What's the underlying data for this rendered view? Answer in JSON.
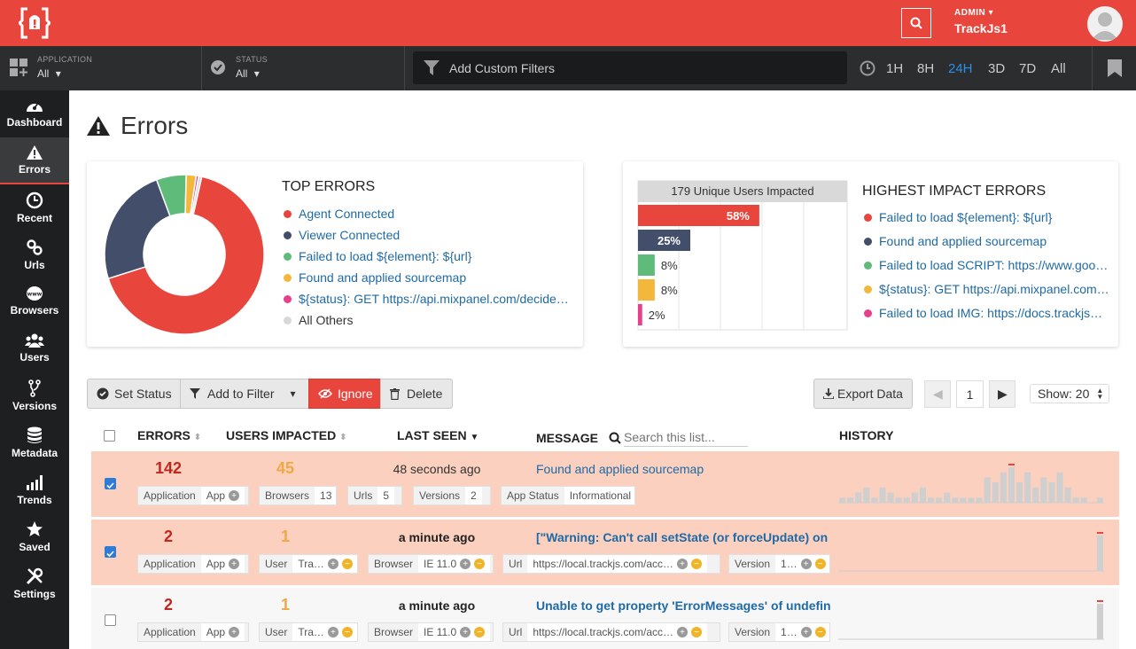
{
  "header": {
    "admin_label": "ADMIN",
    "org_name": "TrackJs1"
  },
  "filters": {
    "application": {
      "caption": "APPLICATION",
      "value": "All"
    },
    "status": {
      "caption": "STATUS",
      "value": "All"
    },
    "custom_placeholder": "Add Custom Filters",
    "time_ranges": [
      "1H",
      "8H",
      "24H",
      "3D",
      "7D",
      "All"
    ],
    "active_range": "24H"
  },
  "sidebar": {
    "items": [
      {
        "label": "Dashboard",
        "icon": "dashboard-icon"
      },
      {
        "label": "Errors",
        "icon": "warning-icon",
        "active": true
      },
      {
        "label": "Recent",
        "icon": "clock-icon"
      },
      {
        "label": "Urls",
        "icon": "link-icon"
      },
      {
        "label": "Browsers",
        "icon": "globe-icon"
      },
      {
        "label": "Users",
        "icon": "users-icon"
      },
      {
        "label": "Versions",
        "icon": "branch-icon"
      },
      {
        "label": "Metadata",
        "icon": "database-icon"
      },
      {
        "label": "Trends",
        "icon": "chart-icon"
      },
      {
        "label": "Saved",
        "icon": "star-icon"
      },
      {
        "label": "Settings",
        "icon": "tools-icon"
      }
    ]
  },
  "page": {
    "title": "Errors"
  },
  "top_errors": {
    "title": "TOP ERRORS",
    "items": [
      {
        "label": "Agent Connected",
        "color": "#e8453c"
      },
      {
        "label": "Viewer Connected",
        "color": "#434e6b"
      },
      {
        "label": "Failed to load ${element}: ${url}",
        "color": "#5fbb7a"
      },
      {
        "label": "Found and applied sourcemap",
        "color": "#f3b73b"
      },
      {
        "label": "${status}: GET https://api.mixpanel.com/decide…",
        "color": "#e83e8c"
      },
      {
        "label": "All Others",
        "color": "#d8d8d8"
      }
    ]
  },
  "chart_data": [
    {
      "type": "pie",
      "title": "TOP ERRORS",
      "labels": [
        "Agent Connected",
        "Viewer Connected",
        "Failed to load ${element}: ${url}",
        "Found and applied sourcemap",
        "${status}: GET https://api.mixpanel.com/decide…",
        "All Others"
      ],
      "values": [
        66,
        24,
        6,
        2,
        0.5,
        0.6
      ]
    },
    {
      "type": "bar",
      "title": "179 Unique Users Impacted",
      "categories": [
        "Failed to load ${element}: ${url}",
        "Found and applied sourcemap",
        "Failed to load SCRIPT: https://www.goo…",
        "${status}: GET https://api.mixpanel.com…",
        "Failed to load IMG: https://docs.trackjs…"
      ],
      "values": [
        58,
        25,
        8,
        8,
        2
      ],
      "labels": [
        "58%",
        "25%",
        "8%",
        "8%",
        "2%"
      ],
      "colors": [
        "#e8453c",
        "#434e6b",
        "#5fbb7a",
        "#f3b73b",
        "#e83e8c"
      ],
      "xlim": [
        0,
        100
      ]
    }
  ],
  "highest_impact": {
    "title": "HIGHEST IMPACT ERRORS",
    "header": "179 Unique Users Impacted",
    "items": [
      {
        "label": "Failed to load ${element}: ${url}",
        "color": "#e8453c"
      },
      {
        "label": "Found and applied sourcemap",
        "color": "#434e6b"
      },
      {
        "label": "Failed to load SCRIPT: https://www.goo…",
        "color": "#5fbb7a"
      },
      {
        "label": "${status}: GET https://api.mixpanel.com…",
        "color": "#f3b73b"
      },
      {
        "label": "Failed to load IMG: https://docs.trackjs…",
        "color": "#e83e8c"
      }
    ]
  },
  "toolbar": {
    "set_status": "Set Status",
    "add_filter": "Add to Filter",
    "ignore": "Ignore",
    "delete": "Delete",
    "export": "Export Data",
    "page": "1",
    "show": "Show: 20"
  },
  "table": {
    "headers": {
      "errors": "ERRORS",
      "users": "USERS IMPACTED",
      "last_seen": "LAST SEEN",
      "message": "MESSAGE",
      "history": "HISTORY"
    },
    "search_placeholder": "Search this list...",
    "rows": [
      {
        "errors": "142",
        "users": "45",
        "last_seen": "48 seconds ago",
        "message": "Found and applied sourcemap",
        "checked": true,
        "tags": [
          {
            "k": "Application",
            "v": "App"
          },
          {
            "k": "Browsers",
            "v": "13"
          },
          {
            "k": "Urls",
            "v": "5"
          },
          {
            "k": "Versions",
            "v": "2"
          },
          {
            "k": "App Status",
            "v": "Informational"
          }
        ],
        "history": [
          1,
          1,
          2,
          3,
          1,
          3,
          2,
          1,
          1,
          2,
          3,
          1,
          1,
          2,
          1,
          1,
          1,
          1,
          5,
          4,
          6,
          7,
          4,
          6,
          3,
          5,
          4,
          6,
          3,
          1,
          1,
          0,
          1
        ]
      },
      {
        "errors": "2",
        "users": "1",
        "last_seen": "a minute ago",
        "message": "[\"Warning: Can't call setState (or forceUpdate) on a…",
        "checked": true,
        "tags": [
          {
            "k": "Application",
            "v": "App"
          },
          {
            "k": "User",
            "v": "Tra…"
          },
          {
            "k": "Browser",
            "v": "IE 11.0"
          },
          {
            "k": "Url",
            "v": "https://local.trackjs.com/acc…"
          },
          {
            "k": "Version",
            "v": "1…"
          }
        ],
        "history": [
          0,
          0,
          0,
          0,
          0,
          0,
          0,
          0,
          0,
          0,
          0,
          0,
          0,
          0,
          0,
          0,
          0,
          0,
          0,
          0,
          0,
          0,
          0,
          0,
          0,
          0,
          0,
          0,
          0,
          0,
          0,
          0,
          9
        ]
      },
      {
        "errors": "2",
        "users": "1",
        "last_seen": "a minute ago",
        "message": "Unable to get property 'ErrorMessages' of undefine…",
        "checked": false,
        "tags": [
          {
            "k": "Application",
            "v": "App"
          },
          {
            "k": "User",
            "v": "Tra…"
          },
          {
            "k": "Browser",
            "v": "IE 11.0"
          },
          {
            "k": "Url",
            "v": "https://local.trackjs.com/acc…"
          },
          {
            "k": "Version",
            "v": "1…"
          }
        ],
        "history": [
          0,
          0,
          0,
          0,
          0,
          0,
          0,
          0,
          0,
          0,
          0,
          0,
          0,
          0,
          0,
          0,
          0,
          0,
          0,
          0,
          0,
          0,
          0,
          0,
          0,
          0,
          0,
          0,
          0,
          0,
          0,
          0,
          9
        ]
      }
    ]
  }
}
